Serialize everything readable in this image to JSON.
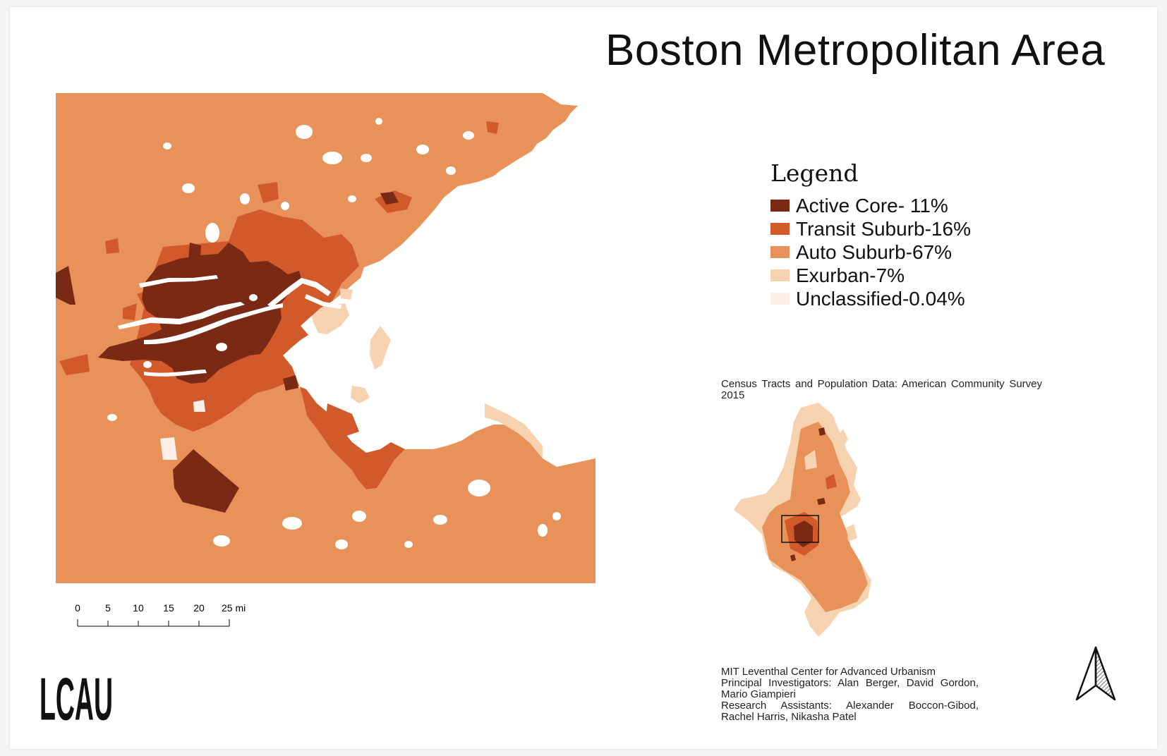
{
  "title": "Boston Metropolitan Area",
  "legend": {
    "title": "Legend",
    "items": [
      {
        "label": "Active Core- 11%",
        "color": "#7a2a14"
      },
      {
        "label": "Transit Suburb-16%",
        "color": "#d25a2a"
      },
      {
        "label": "Auto Suburb-67%",
        "color": "#e8925a"
      },
      {
        "label": "Exurban-7%",
        "color": "#f6d2b0"
      },
      {
        "label": "Unclassified-0.04%",
        "color": "#fcefe8"
      }
    ]
  },
  "source_note": "Census Tracts and Population Data: American Community Survey 2015",
  "scale_bar": {
    "ticks": [
      "0",
      "5",
      "10",
      "15",
      "20",
      "25 mi"
    ]
  },
  "credits": [
    "MIT Leventhal Center for Advanced Urbanism",
    "Principal Investigators: Alan Berger, David Gordon, Mario Giampieri",
    "Research Assistants: Alexander Boccon-Gibod, Rachel Harris, Nikasha Patel"
  ],
  "logo": {
    "text": "LCAU"
  },
  "north_arrow_icon": "north-arrow-icon",
  "colors": {
    "active_core": "#7a2a14",
    "transit_suburb": "#d25a2a",
    "auto_suburb": "#e8925a",
    "exurban": "#f6d2b0",
    "unclassified": "#fcefe8",
    "water": "#ffffff"
  }
}
